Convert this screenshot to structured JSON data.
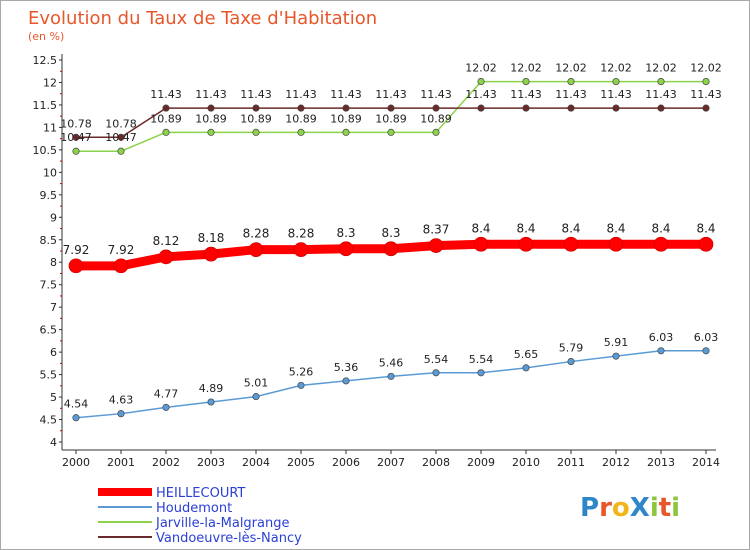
{
  "chart_data": {
    "type": "line",
    "title": "Evolution du Taux de Taxe d'Habitation",
    "ylabel": "(en %)",
    "x": [
      "2000",
      "2001",
      "2002",
      "2003",
      "2004",
      "2005",
      "2006",
      "2007",
      "2008",
      "2009",
      "2010",
      "2011",
      "2012",
      "2013",
      "2014"
    ],
    "ylim": [
      4,
      12.5
    ],
    "ytick_step": 0.5,
    "grid": false,
    "legend_position": "bottom-left",
    "series": [
      {
        "name": "HEILLECOURT",
        "color": "#ff0000",
        "emphasis": true,
        "values": [
          7.92,
          7.92,
          8.12,
          8.18,
          8.28,
          8.28,
          8.3,
          8.3,
          8.37,
          8.4,
          8.4,
          8.4,
          8.4,
          8.4,
          8.4
        ],
        "labels": [
          "7.92",
          "7.92",
          "8.12",
          "8.18",
          "8.28",
          "8.28",
          "8.3",
          "8.3",
          "8.37",
          "8.4",
          "8.4",
          "8.4",
          "8.4",
          "8.4",
          "8.4"
        ]
      },
      {
        "name": "Houdemont",
        "color": "#5b9bd5",
        "values": [
          4.54,
          4.63,
          4.77,
          4.89,
          5.01,
          5.26,
          5.36,
          5.46,
          5.54,
          5.54,
          5.65,
          5.79,
          5.91,
          6.03,
          6.03
        ],
        "labels": [
          "4.54",
          "4.63",
          "4.77",
          "4.89",
          "5.01",
          "5.26",
          "5.36",
          "5.46",
          "5.54",
          "5.54",
          "5.65",
          "5.79",
          "5.91",
          "6.03",
          "6.03"
        ]
      },
      {
        "name": "Jarville-la-Malgrange",
        "color": "#8cd24a",
        "values": [
          10.47,
          10.47,
          10.89,
          10.89,
          10.89,
          10.89,
          10.89,
          10.89,
          10.89,
          12.02,
          12.02,
          12.02,
          12.02,
          12.02,
          12.02
        ],
        "labels": [
          "10.47",
          "10.47",
          "10.89",
          "10.89",
          "10.89",
          "10.89",
          "10.89",
          "10.89",
          "10.89",
          "12.02",
          "12.02",
          "12.02",
          "12.02",
          "12.02",
          "12.02"
        ]
      },
      {
        "name": "Vandoeuvre-lès-Nancy",
        "color": "#6b2a2a",
        "values": [
          10.78,
          10.78,
          11.43,
          11.43,
          11.43,
          11.43,
          11.43,
          11.43,
          11.43,
          11.43,
          11.43,
          11.43,
          11.43,
          11.43,
          11.43
        ],
        "labels": [
          "10.78",
          "10.78",
          "11.43",
          "11.43",
          "11.43",
          "11.43",
          "11.43",
          "11.43",
          "11.43",
          "11.43",
          "11.43",
          "11.43",
          "11.43",
          "11.43",
          "11.43"
        ]
      }
    ]
  },
  "logo": {
    "text": "ProXiti",
    "letter_colors": [
      "#2f87c9",
      "#e8572a",
      "#f2b418",
      "#2f87c9",
      "#8cc63f",
      "#e8572a",
      "#8cc63f"
    ]
  }
}
